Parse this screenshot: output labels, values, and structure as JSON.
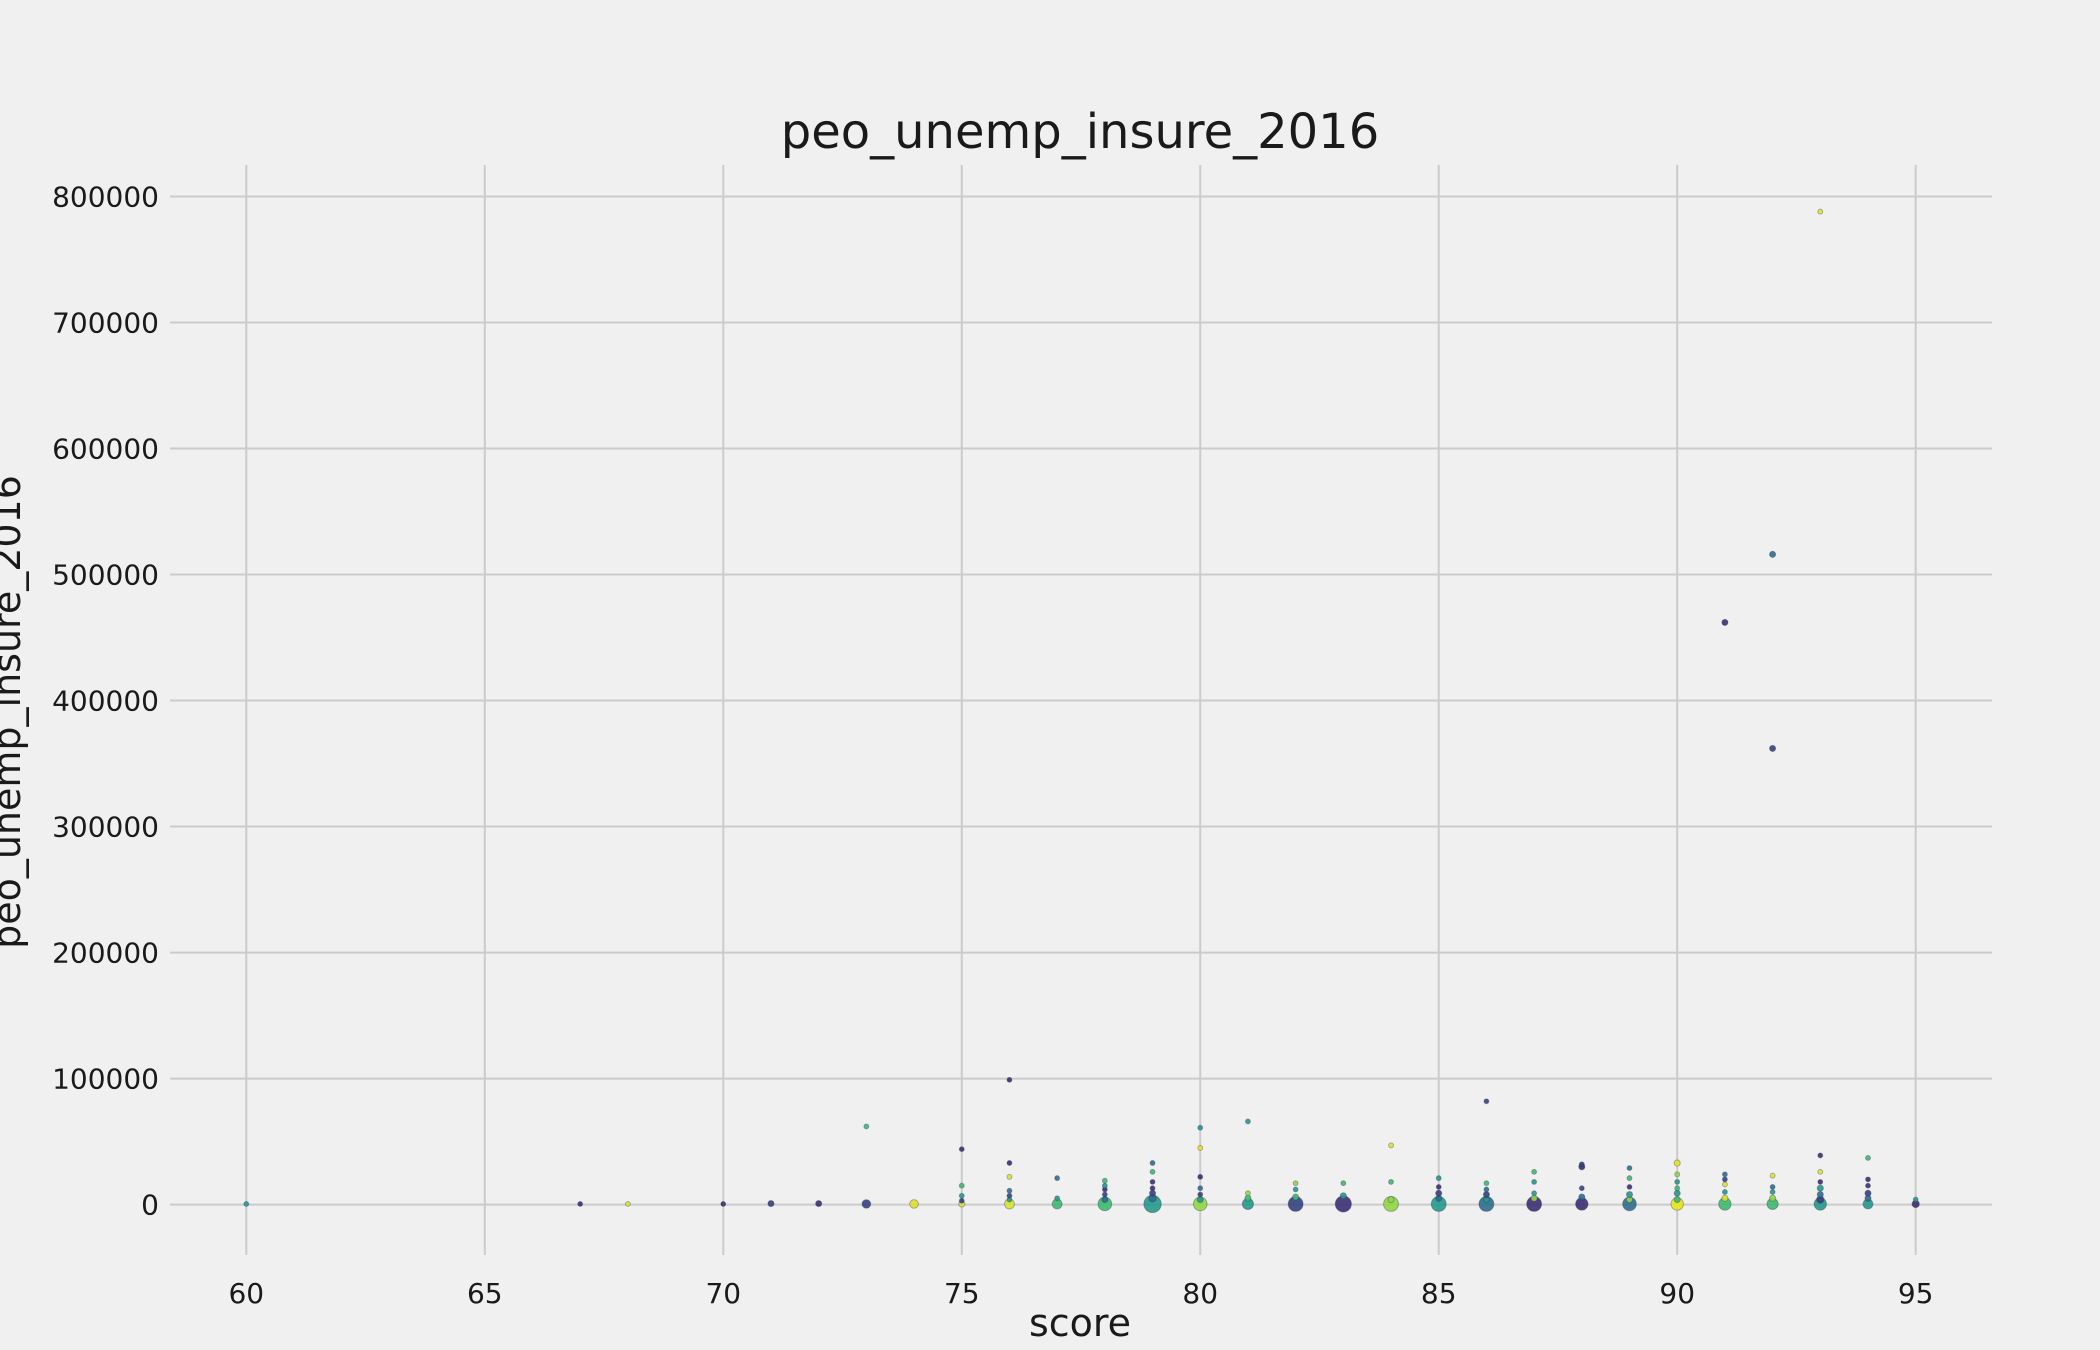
{
  "chart_data": {
    "type": "scatter",
    "title": "peo_unemp_insure_2016",
    "xlabel": "score",
    "ylabel": "peo_unemp_insure_2016",
    "xlim": [
      58.4,
      96.6
    ],
    "ylim": [
      -40000,
      825000
    ],
    "xticks": [
      "60",
      "65",
      "70",
      "75",
      "80",
      "85",
      "90",
      "95"
    ],
    "yticks": [
      "0",
      "100000",
      "200000",
      "300000",
      "400000",
      "500000",
      "600000",
      "700000",
      "800000"
    ],
    "grid": true,
    "colors": {
      "dark_purple": "#3b2f72",
      "navy": "#34427f",
      "blue": "#2c6e8e",
      "teal": "#23998a",
      "green": "#3cba6f",
      "lime": "#8fd744",
      "yellow": "#d9e22b",
      "bright_yellow": "#e8e419"
    },
    "points": [
      {
        "x": 60,
        "y": 500,
        "s": 1,
        "c": "teal"
      },
      {
        "x": 67,
        "y": 500,
        "s": 1,
        "c": "dark_purple"
      },
      {
        "x": 68,
        "y": 500,
        "s": 1,
        "c": "yellow"
      },
      {
        "x": 70,
        "y": 500,
        "s": 1,
        "c": "dark_purple"
      },
      {
        "x": 71,
        "y": 800,
        "s": 1.5,
        "c": "navy"
      },
      {
        "x": 72,
        "y": 800,
        "s": 1.5,
        "c": "dark_purple"
      },
      {
        "x": 73,
        "y": 500,
        "s": 2.5,
        "c": "navy"
      },
      {
        "x": 73,
        "y": 62000,
        "s": 1,
        "c": "green"
      },
      {
        "x": 74,
        "y": 500,
        "s": 2.5,
        "c": "yellow"
      },
      {
        "x": 75,
        "y": 500,
        "s": 1.5,
        "c": "yellow"
      },
      {
        "x": 75,
        "y": 3000,
        "s": 1,
        "c": "navy"
      },
      {
        "x": 75,
        "y": 7000,
        "s": 1,
        "c": "teal"
      },
      {
        "x": 75,
        "y": 15000,
        "s": 1,
        "c": "green"
      },
      {
        "x": 75,
        "y": 44000,
        "s": 1,
        "c": "dark_purple"
      },
      {
        "x": 76,
        "y": 500,
        "s": 3,
        "c": "yellow"
      },
      {
        "x": 76,
        "y": 4000,
        "s": 1,
        "c": "teal"
      },
      {
        "x": 76,
        "y": 7000,
        "s": 1,
        "c": "navy"
      },
      {
        "x": 76,
        "y": 11000,
        "s": 1,
        "c": "blue"
      },
      {
        "x": 76,
        "y": 22000,
        "s": 1,
        "c": "yellow"
      },
      {
        "x": 76,
        "y": 33000,
        "s": 1,
        "c": "dark_purple"
      },
      {
        "x": 76,
        "y": 99000,
        "s": 1,
        "c": "dark_purple"
      },
      {
        "x": 77,
        "y": 500,
        "s": 3,
        "c": "green"
      },
      {
        "x": 77,
        "y": 5000,
        "s": 1,
        "c": "teal"
      },
      {
        "x": 77,
        "y": 21000,
        "s": 1,
        "c": "blue"
      },
      {
        "x": 78,
        "y": 500,
        "s": 4.5,
        "c": "green"
      },
      {
        "x": 78,
        "y": 4000,
        "s": 1.5,
        "c": "blue"
      },
      {
        "x": 78,
        "y": 8000,
        "s": 1,
        "c": "navy"
      },
      {
        "x": 78,
        "y": 12000,
        "s": 1,
        "c": "dark_purple"
      },
      {
        "x": 78,
        "y": 15000,
        "s": 1,
        "c": "teal"
      },
      {
        "x": 78,
        "y": 19000,
        "s": 1,
        "c": "green"
      },
      {
        "x": 79,
        "y": 500,
        "s": 6,
        "c": "teal"
      },
      {
        "x": 79,
        "y": 5000,
        "s": 2,
        "c": "blue"
      },
      {
        "x": 79,
        "y": 9000,
        "s": 1.5,
        "c": "navy"
      },
      {
        "x": 79,
        "y": 13000,
        "s": 1,
        "c": "dark_purple"
      },
      {
        "x": 79,
        "y": 18000,
        "s": 1,
        "c": "dark_purple"
      },
      {
        "x": 79,
        "y": 26000,
        "s": 1,
        "c": "green"
      },
      {
        "x": 79,
        "y": 33000,
        "s": 1,
        "c": "blue"
      },
      {
        "x": 80,
        "y": 500,
        "s": 4.5,
        "c": "lime"
      },
      {
        "x": 80,
        "y": 4000,
        "s": 1.5,
        "c": "teal"
      },
      {
        "x": 80,
        "y": 8000,
        "s": 1,
        "c": "navy"
      },
      {
        "x": 80,
        "y": 13000,
        "s": 1,
        "c": "blue"
      },
      {
        "x": 80,
        "y": 22000,
        "s": 1,
        "c": "dark_purple"
      },
      {
        "x": 80,
        "y": 45000,
        "s": 1,
        "c": "bright_yellow"
      },
      {
        "x": 80,
        "y": 61000,
        "s": 1,
        "c": "teal"
      },
      {
        "x": 81,
        "y": 500,
        "s": 3.5,
        "c": "teal"
      },
      {
        "x": 81,
        "y": 5000,
        "s": 1.5,
        "c": "green"
      },
      {
        "x": 81,
        "y": 9000,
        "s": 1,
        "c": "lime"
      },
      {
        "x": 81,
        "y": 66000,
        "s": 1,
        "c": "teal"
      },
      {
        "x": 82,
        "y": 500,
        "s": 5,
        "c": "navy"
      },
      {
        "x": 82,
        "y": 6000,
        "s": 1.5,
        "c": "green"
      },
      {
        "x": 82,
        "y": 12000,
        "s": 1,
        "c": "teal"
      },
      {
        "x": 82,
        "y": 17000,
        "s": 1,
        "c": "lime"
      },
      {
        "x": 83,
        "y": 500,
        "s": 5.5,
        "c": "dark_purple"
      },
      {
        "x": 83,
        "y": 7000,
        "s": 1.5,
        "c": "teal"
      },
      {
        "x": 83,
        "y": 17000,
        "s": 1,
        "c": "green"
      },
      {
        "x": 84,
        "y": 500,
        "s": 5,
        "c": "lime"
      },
      {
        "x": 84,
        "y": 4000,
        "s": 1.5,
        "c": "lime"
      },
      {
        "x": 84,
        "y": 18000,
        "s": 1,
        "c": "green"
      },
      {
        "x": 84,
        "y": 47000,
        "s": 1,
        "c": "yellow"
      },
      {
        "x": 85,
        "y": 500,
        "s": 5,
        "c": "teal"
      },
      {
        "x": 85,
        "y": 5000,
        "s": 1.5,
        "c": "blue"
      },
      {
        "x": 85,
        "y": 9000,
        "s": 1.5,
        "c": "navy"
      },
      {
        "x": 85,
        "y": 14000,
        "s": 1,
        "c": "dark_purple"
      },
      {
        "x": 85,
        "y": 21000,
        "s": 1,
        "c": "teal"
      },
      {
        "x": 86,
        "y": 500,
        "s": 5,
        "c": "blue"
      },
      {
        "x": 86,
        "y": 4000,
        "s": 1.5,
        "c": "teal"
      },
      {
        "x": 86,
        "y": 8000,
        "s": 1.5,
        "c": "navy"
      },
      {
        "x": 86,
        "y": 12000,
        "s": 1,
        "c": "blue"
      },
      {
        "x": 86,
        "y": 17000,
        "s": 1,
        "c": "green"
      },
      {
        "x": 86,
        "y": 82000,
        "s": 1,
        "c": "navy"
      },
      {
        "x": 87,
        "y": 500,
        "s": 5,
        "c": "dark_purple"
      },
      {
        "x": 87,
        "y": 5000,
        "s": 1.5,
        "c": "lime"
      },
      {
        "x": 87,
        "y": 9000,
        "s": 1,
        "c": "teal"
      },
      {
        "x": 87,
        "y": 18000,
        "s": 1,
        "c": "teal"
      },
      {
        "x": 87,
        "y": 26000,
        "s": 1,
        "c": "green"
      },
      {
        "x": 88,
        "y": 500,
        "s": 4,
        "c": "dark_purple"
      },
      {
        "x": 88,
        "y": 6000,
        "s": 1.5,
        "c": "blue"
      },
      {
        "x": 88,
        "y": 13000,
        "s": 1,
        "c": "navy"
      },
      {
        "x": 88,
        "y": 30000,
        "s": 1.5,
        "c": "dark_purple"
      },
      {
        "x": 88,
        "y": 32000,
        "s": 1,
        "c": "navy"
      },
      {
        "x": 89,
        "y": 500,
        "s": 4.5,
        "c": "blue"
      },
      {
        "x": 89,
        "y": 4000,
        "s": 1.5,
        "c": "lime"
      },
      {
        "x": 89,
        "y": 8000,
        "s": 1.5,
        "c": "teal"
      },
      {
        "x": 89,
        "y": 14000,
        "s": 1,
        "c": "dark_purple"
      },
      {
        "x": 89,
        "y": 21000,
        "s": 1,
        "c": "green"
      },
      {
        "x": 89,
        "y": 29000,
        "s": 1,
        "c": "blue"
      },
      {
        "x": 90,
        "y": 500,
        "s": 4,
        "c": "bright_yellow"
      },
      {
        "x": 90,
        "y": 4000,
        "s": 1.5,
        "c": "green"
      },
      {
        "x": 90,
        "y": 9000,
        "s": 1.5,
        "c": "teal"
      },
      {
        "x": 90,
        "y": 13000,
        "s": 1,
        "c": "green"
      },
      {
        "x": 90,
        "y": 18000,
        "s": 1,
        "c": "teal"
      },
      {
        "x": 90,
        "y": 24000,
        "s": 1,
        "c": "lime"
      },
      {
        "x": 90,
        "y": 33000,
        "s": 1.5,
        "c": "bright_yellow"
      },
      {
        "x": 91,
        "y": 500,
        "s": 4,
        "c": "green"
      },
      {
        "x": 91,
        "y": 5000,
        "s": 1.5,
        "c": "yellow"
      },
      {
        "x": 91,
        "y": 10000,
        "s": 1,
        "c": "teal"
      },
      {
        "x": 91,
        "y": 16000,
        "s": 1,
        "c": "yellow"
      },
      {
        "x": 91,
        "y": 20000,
        "s": 1,
        "c": "navy"
      },
      {
        "x": 91,
        "y": 24000,
        "s": 1,
        "c": "blue"
      },
      {
        "x": 91,
        "y": 462000,
        "s": 1.5,
        "c": "dark_purple"
      },
      {
        "x": 92,
        "y": 500,
        "s": 3.5,
        "c": "green"
      },
      {
        "x": 92,
        "y": 5000,
        "s": 1.5,
        "c": "lime"
      },
      {
        "x": 92,
        "y": 10000,
        "s": 1,
        "c": "teal"
      },
      {
        "x": 92,
        "y": 14000,
        "s": 1,
        "c": "blue"
      },
      {
        "x": 92,
        "y": 23000,
        "s": 1,
        "c": "yellow"
      },
      {
        "x": 92,
        "y": 362000,
        "s": 1.5,
        "c": "navy"
      },
      {
        "x": 92,
        "y": 516000,
        "s": 1.5,
        "c": "blue"
      },
      {
        "x": 93,
        "y": 500,
        "s": 4,
        "c": "teal"
      },
      {
        "x": 93,
        "y": 4000,
        "s": 2,
        "c": "navy"
      },
      {
        "x": 93,
        "y": 8000,
        "s": 1.5,
        "c": "blue"
      },
      {
        "x": 93,
        "y": 13000,
        "s": 1.5,
        "c": "teal"
      },
      {
        "x": 93,
        "y": 18000,
        "s": 1,
        "c": "dark_purple"
      },
      {
        "x": 93,
        "y": 26000,
        "s": 1,
        "c": "yellow"
      },
      {
        "x": 93,
        "y": 39000,
        "s": 1,
        "c": "dark_purple"
      },
      {
        "x": 93,
        "y": 788000,
        "s": 1,
        "c": "yellow"
      },
      {
        "x": 94,
        "y": 500,
        "s": 3,
        "c": "teal"
      },
      {
        "x": 94,
        "y": 5000,
        "s": 1.5,
        "c": "blue"
      },
      {
        "x": 94,
        "y": 9000,
        "s": 1.5,
        "c": "navy"
      },
      {
        "x": 94,
        "y": 15000,
        "s": 1,
        "c": "dark_purple"
      },
      {
        "x": 94,
        "y": 20000,
        "s": 1,
        "c": "dark_purple"
      },
      {
        "x": 94,
        "y": 37000,
        "s": 1,
        "c": "green"
      },
      {
        "x": 95,
        "y": 500,
        "s": 2,
        "c": "dark_purple"
      },
      {
        "x": 95,
        "y": 4000,
        "s": 1,
        "c": "teal"
      }
    ]
  }
}
